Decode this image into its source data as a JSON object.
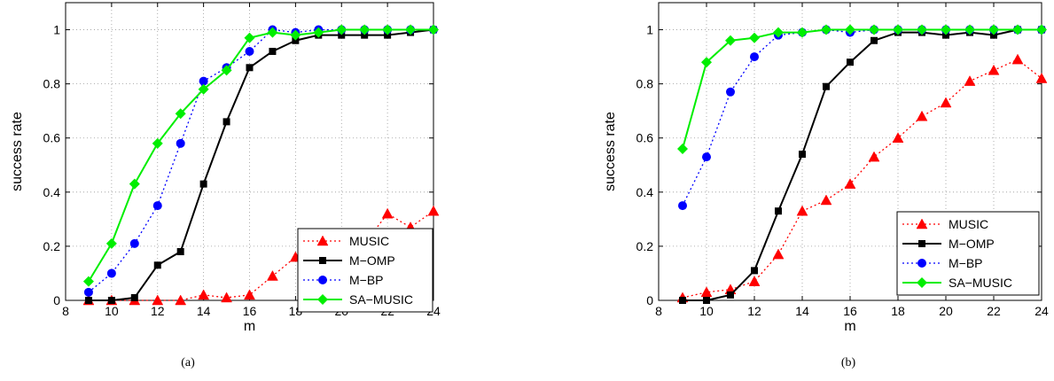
{
  "chart_data": [
    {
      "type": "line",
      "panel_label": "(a)",
      "xlabel": "m",
      "ylabel": "success rate",
      "xlim": [
        8,
        24
      ],
      "ylim": [
        0,
        1.1
      ],
      "xticks": [
        8,
        10,
        12,
        14,
        16,
        18,
        20,
        22,
        24
      ],
      "yticks": [
        0,
        0.2,
        0.4,
        0.6,
        0.8,
        1
      ],
      "ytick_labels": [
        "0",
        "0.2",
        "0.4",
        "0.6",
        "0.8",
        "1"
      ],
      "grid": true,
      "legend_position": "center-right",
      "x": [
        9,
        10,
        11,
        12,
        13,
        14,
        15,
        16,
        17,
        18,
        19,
        20,
        21,
        22,
        23,
        24
      ],
      "series": [
        {
          "name": "MUSIC",
          "color": "#ff0000",
          "line": "dotted",
          "marker": "triangle",
          "values": [
            0,
            0,
            0,
            0,
            0,
            0.02,
            0.01,
            0.02,
            0.09,
            0.16,
            0.14,
            0.23,
            0.21,
            0.32,
            0.27,
            0.33
          ]
        },
        {
          "name": "M−OMP",
          "color": "#000000",
          "line": "solid",
          "marker": "square",
          "values": [
            0,
            0,
            0.01,
            0.13,
            0.18,
            0.43,
            0.66,
            0.86,
            0.92,
            0.96,
            0.98,
            0.98,
            0.98,
            0.98,
            0.99,
            1
          ]
        },
        {
          "name": "M−BP",
          "color": "#0000ff",
          "line": "dotted",
          "marker": "circle",
          "values": [
            0.03,
            0.1,
            0.21,
            0.35,
            0.58,
            0.81,
            0.86,
            0.92,
            1,
            0.99,
            1,
            1,
            1,
            1,
            1,
            1
          ]
        },
        {
          "name": "SA−MUSIC",
          "color": "#00ee00",
          "line": "solid",
          "marker": "diamond",
          "values": [
            0.07,
            0.21,
            0.43,
            0.58,
            0.69,
            0.78,
            0.85,
            0.97,
            0.99,
            0.98,
            0.99,
            1,
            1,
            1,
            1,
            1
          ]
        }
      ]
    },
    {
      "type": "line",
      "panel_label": "(b)",
      "xlabel": "m",
      "ylabel": "success rate",
      "xlim": [
        8,
        24
      ],
      "ylim": [
        0,
        1.1
      ],
      "xticks": [
        8,
        10,
        12,
        14,
        16,
        18,
        20,
        22,
        24
      ],
      "yticks": [
        0,
        0.2,
        0.4,
        0.6,
        0.8,
        1
      ],
      "ytick_labels": [
        "0",
        "0.2",
        "0.4",
        "0.6",
        "0.8",
        "1"
      ],
      "grid": true,
      "legend_position": "bottom-right",
      "x": [
        9,
        10,
        11,
        12,
        13,
        14,
        15,
        16,
        17,
        18,
        19,
        20,
        21,
        22,
        23,
        24
      ],
      "series": [
        {
          "name": "MUSIC",
          "color": "#ff0000",
          "line": "dotted",
          "marker": "triangle",
          "values": [
            0.01,
            0.03,
            0.04,
            0.07,
            0.17,
            0.33,
            0.37,
            0.43,
            0.53,
            0.6,
            0.68,
            0.73,
            0.81,
            0.85,
            0.89,
            0.82
          ]
        },
        {
          "name": "M−OMP",
          "color": "#000000",
          "line": "solid",
          "marker": "square",
          "values": [
            0,
            0,
            0.02,
            0.11,
            0.33,
            0.54,
            0.79,
            0.88,
            0.96,
            0.99,
            0.99,
            0.98,
            0.99,
            0.98,
            1,
            1
          ]
        },
        {
          "name": "M−BP",
          "color": "#0000ff",
          "line": "dotted",
          "marker": "circle",
          "values": [
            0.35,
            0.53,
            0.77,
            0.9,
            0.98,
            0.99,
            1,
            0.99,
            1,
            1,
            1,
            1,
            1,
            1,
            1,
            1
          ]
        },
        {
          "name": "SA−MUSIC",
          "color": "#00ee00",
          "line": "solid",
          "marker": "diamond",
          "values": [
            0.56,
            0.88,
            0.96,
            0.97,
            0.99,
            0.99,
            1,
            1,
            1,
            1,
            1,
            1,
            1,
            1,
            1,
            1
          ]
        }
      ]
    }
  ]
}
